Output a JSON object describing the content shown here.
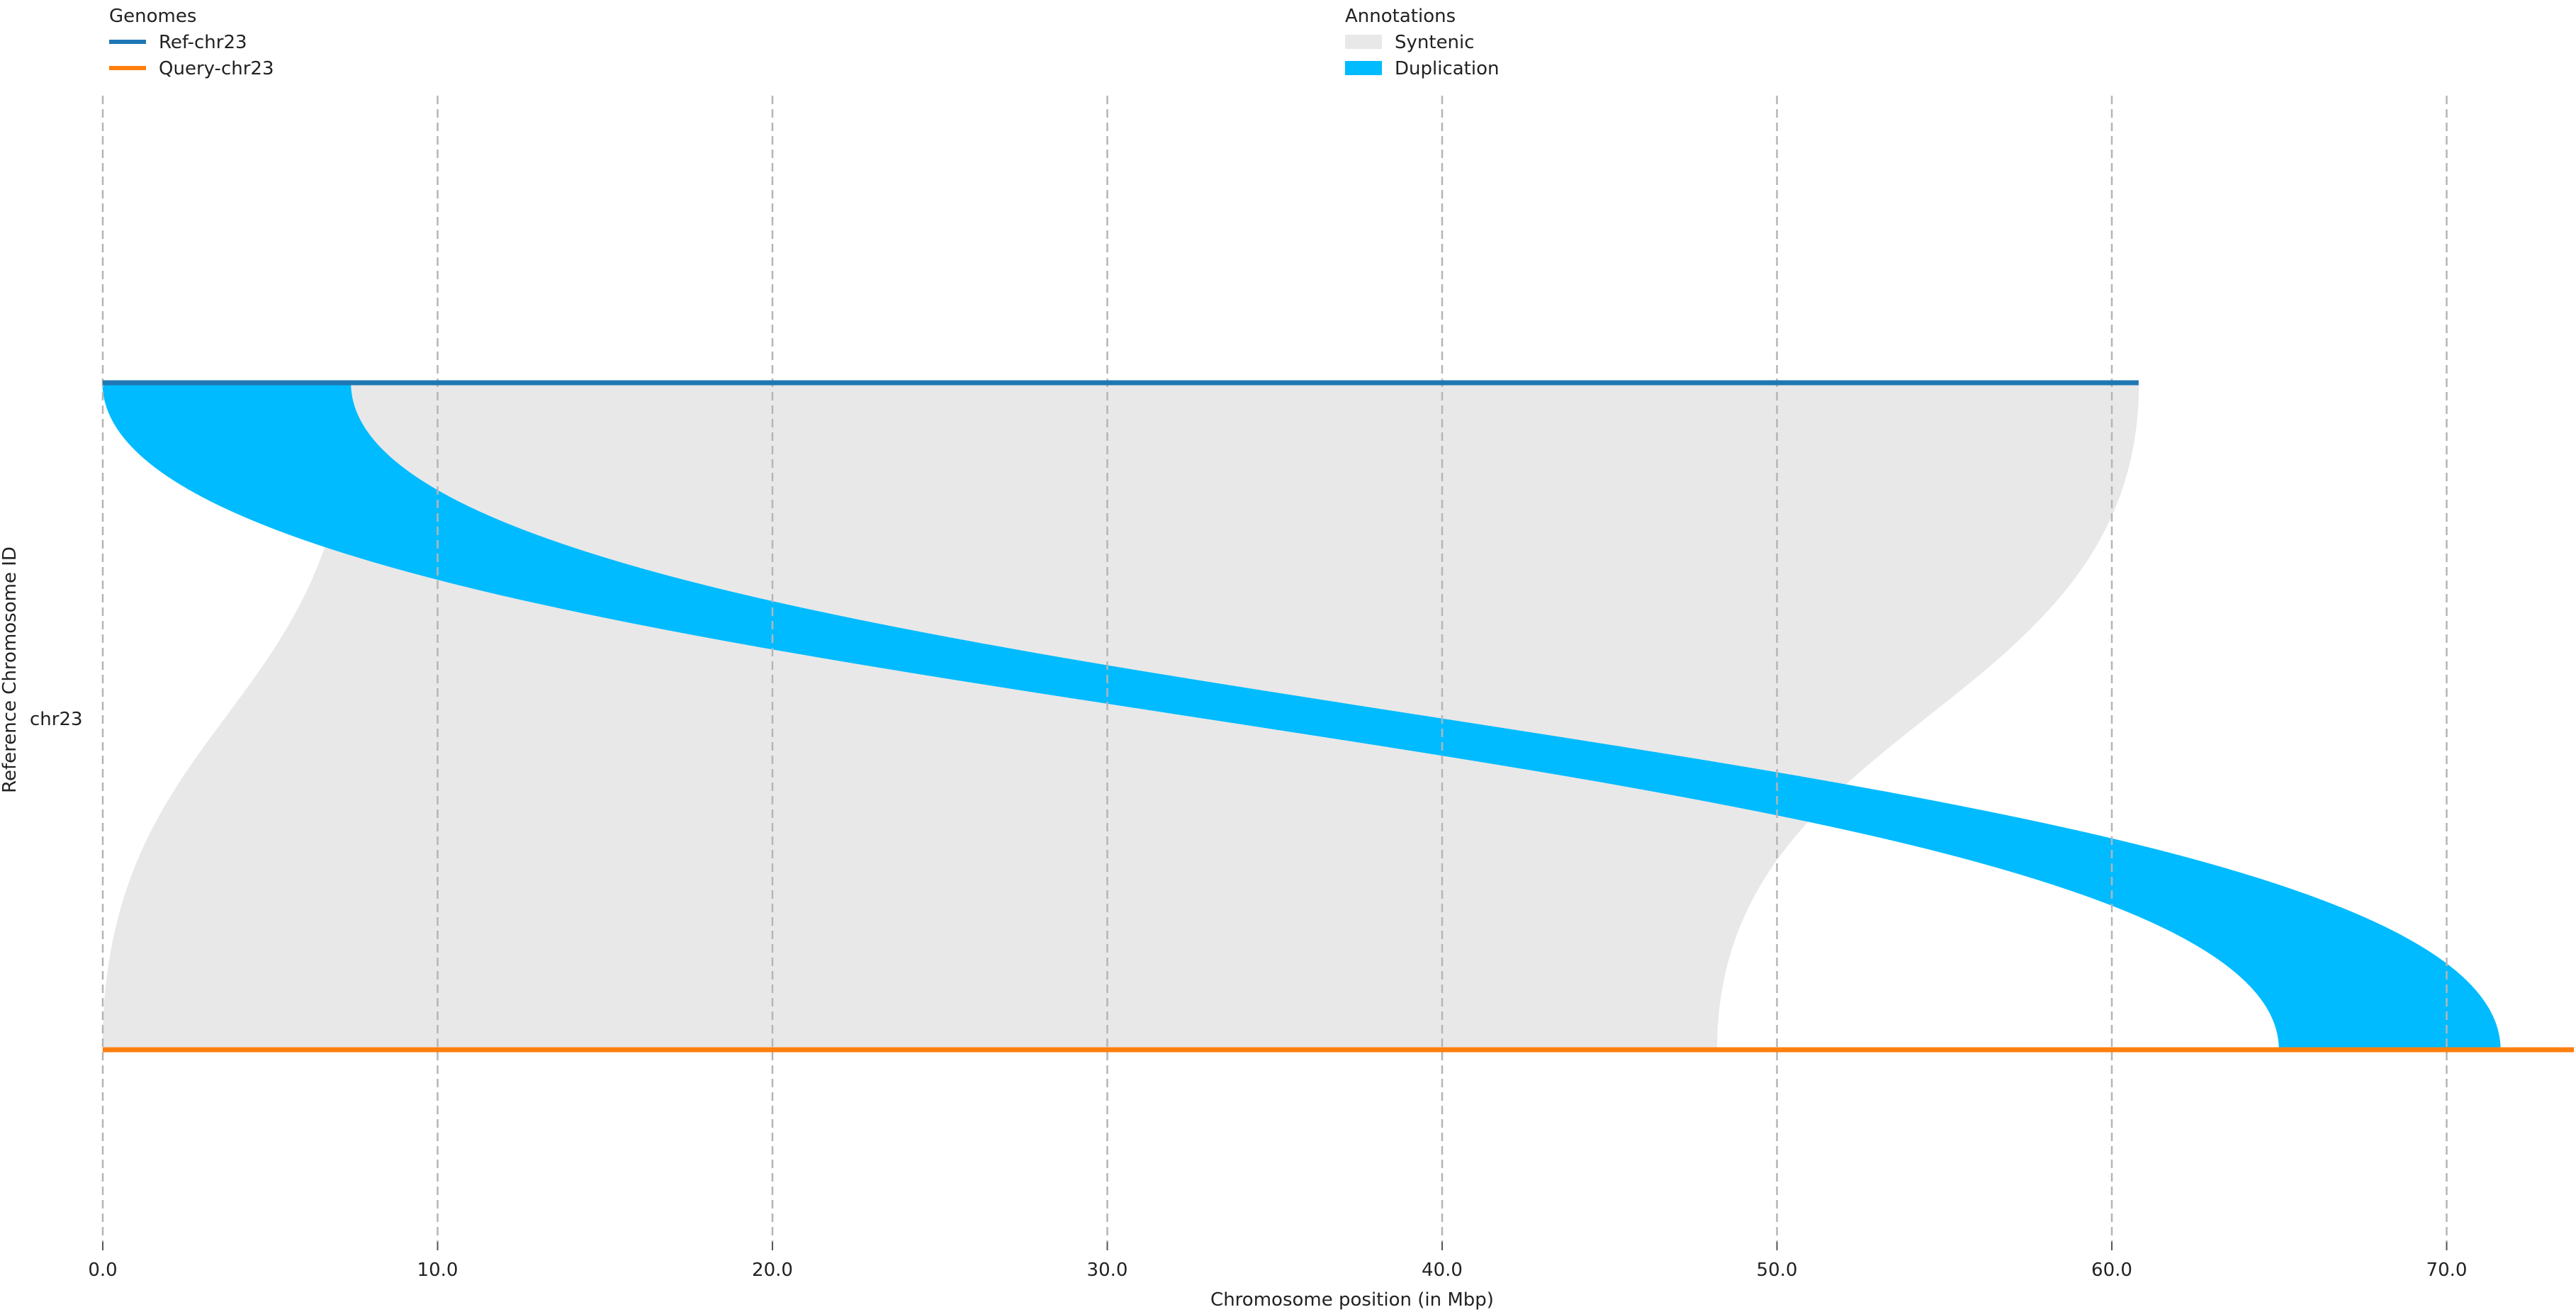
{
  "chart_data": {
    "type": "synteny",
    "xlabel": "Chromosome position (in Mbp)",
    "ylabel": "Reference Chromosome ID",
    "xlim": [
      0,
      74
    ],
    "xticks": [
      0,
      10,
      20,
      30,
      40,
      50,
      60,
      70
    ],
    "xtick_labels": [
      "0.0",
      "10.0",
      "20.0",
      "30.0",
      "40.0",
      "50.0",
      "60.0",
      "70.0"
    ],
    "grid": "vertical dashed",
    "y_categories": [
      "chr23"
    ],
    "genomes_legend": {
      "title": "Genomes",
      "position": "top-left",
      "items": [
        {
          "name": "Ref-chr23",
          "color": "#1f77b4"
        },
        {
          "name": "Query-chr23",
          "color": "#ff7f0e"
        }
      ]
    },
    "annotations_legend": {
      "title": "Annotations",
      "position": "top-center",
      "items": [
        {
          "name": "Syntenic",
          "color": "#e8e8e8"
        },
        {
          "name": "Duplication",
          "color": "#00bbff"
        }
      ]
    },
    "chromosomes": [
      {
        "name": "Ref-chr23",
        "genome": "Ref",
        "start": 0,
        "end": 60.8,
        "color": "#1f77b4"
      },
      {
        "name": "Query-chr23",
        "genome": "Query",
        "start": 0,
        "end": 73.8,
        "color": "#ff7f0e"
      }
    ],
    "alignments": [
      {
        "type": "Syntenic",
        "ref_start": 7.4,
        "ref_end": 46.5,
        "query_start": 0.0,
        "query_end": 25.8,
        "color": "#e8e8e8"
      },
      {
        "type": "Syntenic",
        "ref_start": 46.5,
        "ref_end": 60.8,
        "query_start": 25.8,
        "query_end": 48.2,
        "color": "#e8e8e8"
      },
      {
        "type": "Duplication",
        "ref_start": 0.0,
        "ref_end": 7.4,
        "query_start": 65.0,
        "query_end": 71.6,
        "color": "#00bbff"
      }
    ]
  }
}
